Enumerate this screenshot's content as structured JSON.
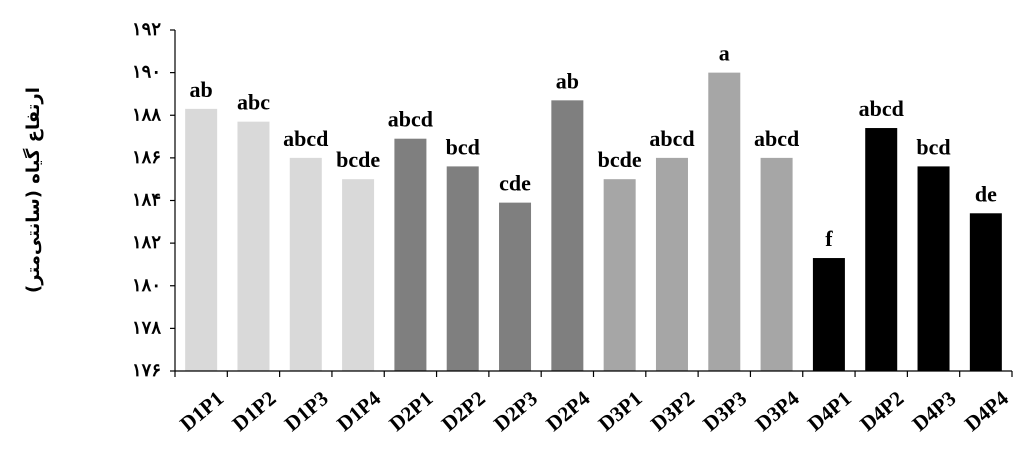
{
  "chart_data": {
    "type": "bar",
    "ylabel": "ارتفاع گیاه (سانتی‌متر)",
    "ylim": [
      176,
      192
    ],
    "yticks": [
      176,
      178,
      180,
      182,
      184,
      186,
      188,
      190,
      192
    ],
    "ytick_labels": [
      "۱۷۶",
      "۱۷۸",
      "۱۸۰",
      "۱۸۲",
      "۱۸۴",
      "۱۸۶",
      "۱۸۸",
      "۱۹۰",
      "۱۹۲"
    ],
    "categories": [
      "D1P1",
      "D1P2",
      "D1P3",
      "D1P4",
      "D2P1",
      "D2P2",
      "D2P3",
      "D2P4",
      "D3P1",
      "D3P2",
      "D3P3",
      "D3P4",
      "D4P1",
      "D4P2",
      "D4P3",
      "D4P4"
    ],
    "values": [
      188.3,
      187.7,
      186.0,
      185.0,
      186.9,
      185.6,
      183.9,
      188.7,
      185.0,
      186.0,
      190.0,
      186.0,
      181.3,
      187.4,
      185.6,
      183.4
    ],
    "labels": [
      "ab",
      "abc",
      "abcd",
      "bcde",
      "abcd",
      "bcd",
      "cde",
      "ab",
      "bcde",
      "abcd",
      "a",
      "abcd",
      "f",
      "abcd",
      "bcd",
      "de"
    ],
    "bar_colors": [
      "#d9d9d9",
      "#d9d9d9",
      "#d9d9d9",
      "#d9d9d9",
      "#7f7f7f",
      "#7f7f7f",
      "#7f7f7f",
      "#7f7f7f",
      "#a6a6a6",
      "#a6a6a6",
      "#a6a6a6",
      "#a6a6a6",
      "#000000",
      "#000000",
      "#000000",
      "#000000"
    ],
    "grid": false,
    "legend": false
  }
}
